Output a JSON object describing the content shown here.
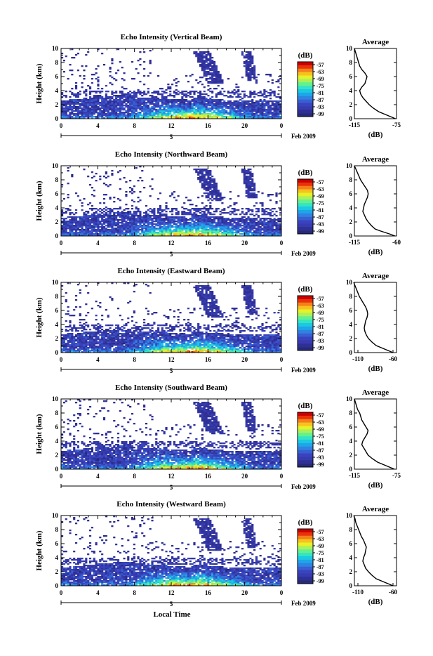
{
  "colorbar": {
    "unit": "(dB)",
    "ticks": [
      "-57",
      "-63",
      "-69",
      "-75",
      "-81",
      "-87",
      "-93",
      "-99"
    ],
    "colors": [
      "#cc0000",
      "#e8330a",
      "#f5801a",
      "#f6c21e",
      "#e8f02a",
      "#a9f25a",
      "#64f08f",
      "#34e4c2",
      "#1cc9e2",
      "#1ea6e8",
      "#2f83e0",
      "#3760d2",
      "#3a43bf",
      "#363cad",
      "#2f2f96",
      "#252a78"
    ]
  },
  "xaxis": {
    "ticks": [
      "0",
      "4",
      "8",
      "12",
      "16",
      "20",
      "0"
    ],
    "day_label": "5",
    "date_label": "Feb 2009",
    "title": "Local Time"
  },
  "yaxis": {
    "title": "Height (km)",
    "ticks": [
      "0",
      "2",
      "4",
      "6",
      "8",
      "10"
    ]
  },
  "average_axis_label": "(dB)",
  "chart_data": [
    {
      "type": "heatmap",
      "title": "Echo Intensity (Vertical Beam)",
      "ylabel": "Height (km)",
      "ylim": [
        0,
        10
      ],
      "xlim": [
        0,
        24
      ],
      "xticks": [
        "0",
        "4",
        "8",
        "12",
        "16",
        "20",
        "0"
      ],
      "colorbar_range_db": [
        -99,
        -57
      ],
      "average_profile": {
        "title": "Average",
        "xticks": [
          "-115",
          "-75"
        ],
        "xlim": [
          -115,
          -75
        ],
        "xlabel": "(dB)",
        "height_km": [
          0,
          0.25,
          0.5,
          0.75,
          1,
          1.5,
          2,
          2.5,
          3,
          3.5,
          4,
          4.5,
          5,
          5.5,
          6,
          6.5,
          7,
          7.5,
          8,
          8.5,
          9,
          9.5,
          10
        ],
        "db": [
          -76,
          -80,
          -84,
          -88,
          -92,
          -97,
          -101,
          -104,
          -107,
          -109,
          -110,
          -108,
          -105,
          -104,
          -103,
          -105,
          -108,
          -110,
          -111,
          -112,
          -113,
          -114,
          -115
        ]
      }
    },
    {
      "type": "heatmap",
      "title": "Echo Intensity (Northward Beam)",
      "ylabel": "Height (km)",
      "ylim": [
        0,
        10
      ],
      "xlim": [
        0,
        24
      ],
      "xticks": [
        "0",
        "4",
        "8",
        "12",
        "16",
        "20",
        "0"
      ],
      "colorbar_range_db": [
        -99,
        -57
      ],
      "average_profile": {
        "title": "Average",
        "xticks": [
          "-115",
          "-60"
        ],
        "xlim": [
          -115,
          -60
        ],
        "xlabel": "(dB)",
        "height_km": [
          0,
          0.25,
          0.5,
          0.75,
          1,
          1.5,
          2,
          2.5,
          3,
          3.5,
          4,
          4.5,
          5,
          5.5,
          6,
          6.5,
          7,
          7.5,
          8,
          8.5,
          9,
          9.5,
          10
        ],
        "db": [
          -62,
          -68,
          -75,
          -82,
          -88,
          -93,
          -97,
          -100,
          -102,
          -104,
          -103,
          -102,
          -100,
          -98,
          -97,
          -98,
          -101,
          -104,
          -107,
          -109,
          -111,
          -113,
          -115
        ]
      }
    },
    {
      "type": "heatmap",
      "title": "Echo Intensity (Eastward Beam)",
      "ylabel": "Height (km)",
      "ylim": [
        0,
        10
      ],
      "xlim": [
        0,
        24
      ],
      "xticks": [
        "0",
        "4",
        "8",
        "12",
        "16",
        "20",
        "0"
      ],
      "colorbar_range_db": [
        -99,
        -57
      ],
      "average_profile": {
        "title": "Average",
        "xticks": [
          "-110",
          "-60"
        ],
        "xlim": [
          -115,
          -55
        ],
        "xlabel": "(dB)",
        "height_km": [
          0,
          0.25,
          0.5,
          0.75,
          1,
          1.5,
          2,
          2.5,
          3,
          3.5,
          4,
          4.5,
          5,
          5.5,
          6,
          6.5,
          7,
          7.5,
          8,
          8.5,
          9,
          9.5,
          10
        ],
        "db": [
          -60,
          -66,
          -72,
          -78,
          -84,
          -90,
          -95,
          -98,
          -100,
          -101,
          -100,
          -99,
          -97,
          -96,
          -97,
          -99,
          -102,
          -105,
          -108,
          -110,
          -112,
          -114,
          -116
        ]
      }
    },
    {
      "type": "heatmap",
      "title": "Echo Intensity (Southward Beam)",
      "ylabel": "Height (km)",
      "ylim": [
        0,
        10
      ],
      "xlim": [
        0,
        24
      ],
      "xticks": [
        "0",
        "4",
        "8",
        "12",
        "16",
        "20",
        "0"
      ],
      "colorbar_range_db": [
        -99,
        -57
      ],
      "average_profile": {
        "title": "Average",
        "xticks": [
          "-115",
          "-75"
        ],
        "xlim": [
          -115,
          -75
        ],
        "xlabel": "(dB)",
        "height_km": [
          0,
          0.25,
          0.5,
          0.75,
          1,
          1.5,
          2,
          2.5,
          3,
          3.5,
          4,
          4.5,
          5,
          5.5,
          6,
          6.5,
          7,
          7.5,
          8,
          8.5,
          9,
          9.5,
          10
        ],
        "db": [
          -77,
          -81,
          -85,
          -89,
          -93,
          -98,
          -102,
          -104,
          -106,
          -108,
          -107,
          -105,
          -103,
          -102,
          -104,
          -106,
          -108,
          -109,
          -110,
          -112,
          -113,
          -114,
          -115
        ]
      }
    },
    {
      "type": "heatmap",
      "title": "Echo Intensity (Westward Beam)",
      "ylabel": "Height (km)",
      "ylim": [
        0,
        10
      ],
      "xlim": [
        0,
        24
      ],
      "xticks": [
        "0",
        "4",
        "8",
        "12",
        "16",
        "20",
        "0"
      ],
      "colorbar_range_db": [
        -99,
        -57
      ],
      "average_profile": {
        "title": "Average",
        "xticks": [
          "-110",
          "-60"
        ],
        "xlim": [
          -115,
          -55
        ],
        "xlabel": "(dB)",
        "height_km": [
          0,
          0.25,
          0.5,
          0.75,
          1,
          1.5,
          2,
          2.5,
          3,
          3.5,
          4,
          4.5,
          5,
          5.5,
          6,
          6.5,
          7,
          7.5,
          8,
          8.5,
          9,
          9.5,
          10
        ],
        "db": [
          -60,
          -66,
          -72,
          -78,
          -84,
          -90,
          -95,
          -99,
          -101,
          -103,
          -102,
          -100,
          -99,
          -98,
          -100,
          -102,
          -105,
          -107,
          -109,
          -111,
          -113,
          -114,
          -116
        ]
      }
    }
  ]
}
